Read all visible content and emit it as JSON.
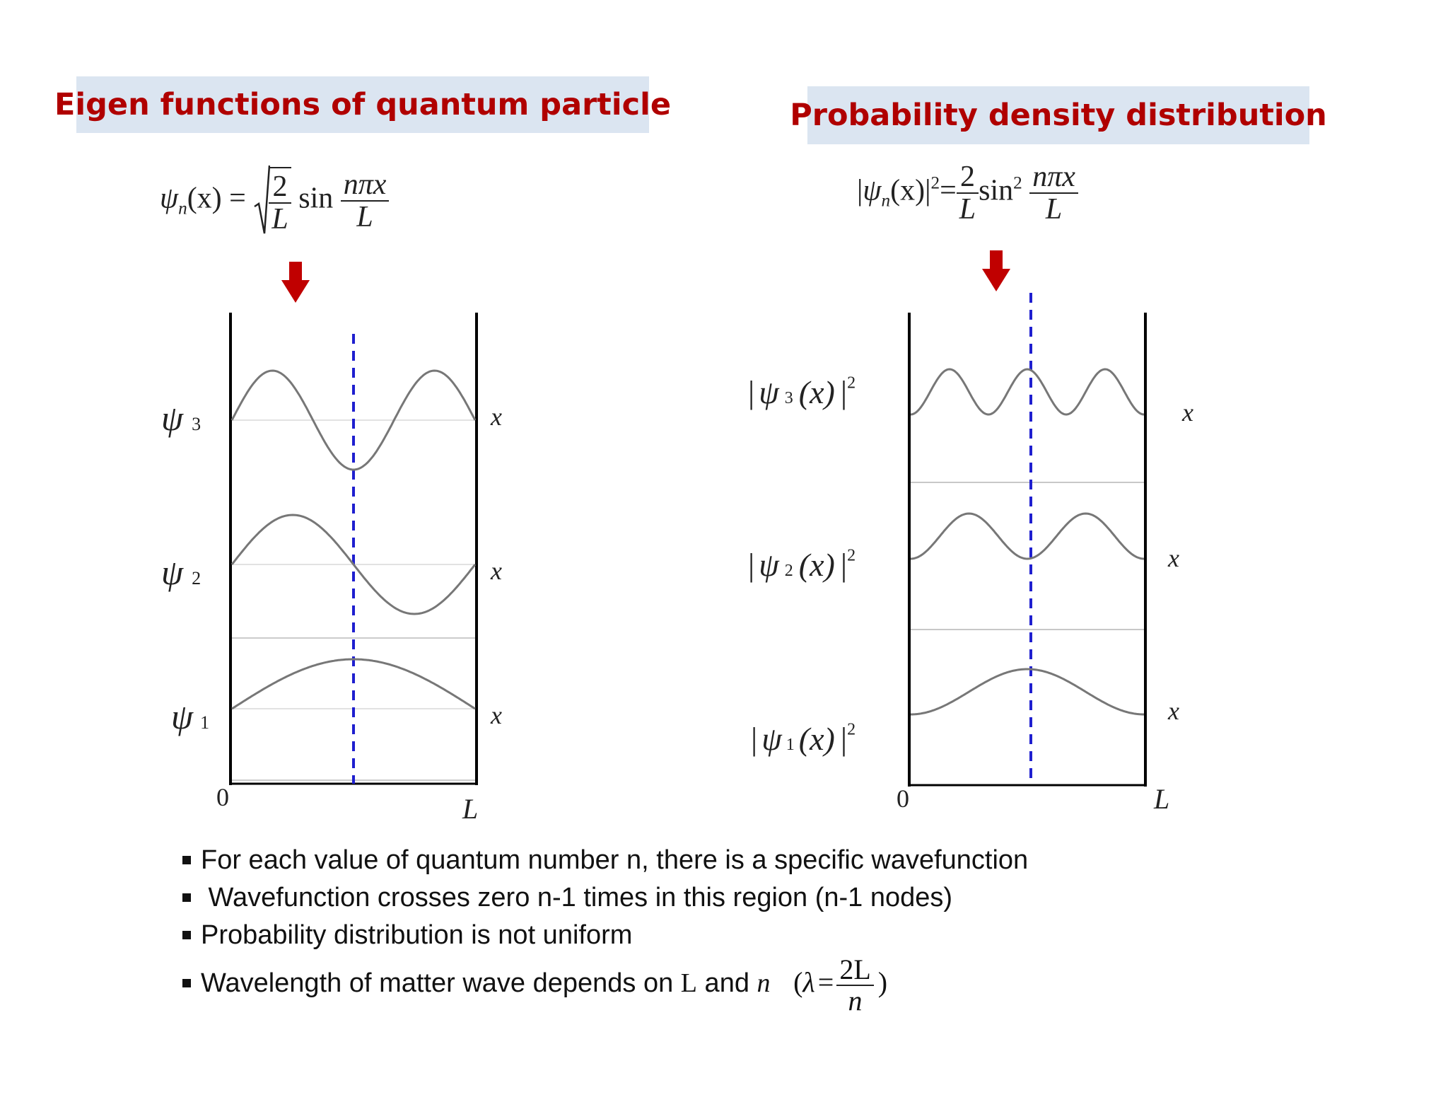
{
  "titles": {
    "left": "Eigen functions of quantum particle",
    "right": "Probability density distribution"
  },
  "formulas": {
    "left": {
      "lhs_psi": "ψ",
      "lhs_sub": "n",
      "lhs_arg": "(x)",
      "equals": "=",
      "sqrt_num": "2",
      "sqrt_den": "L",
      "func": "sin",
      "arg_num": "nπx",
      "arg_den": "L"
    },
    "right": {
      "lhs_open": "|",
      "lhs_psi": "ψ",
      "lhs_sub": "n",
      "lhs_arg": "(x)",
      "lhs_close": "|",
      "lhs_sup": "2",
      "equals": "=",
      "coef_num": "2",
      "coef_den": "L",
      "func": "sin",
      "func_sup": "2",
      "arg_num": "nπx",
      "arg_den": "L"
    }
  },
  "left_diagram": {
    "states": [
      {
        "n": 3,
        "label": "ψ",
        "sub": "3",
        "axis": "x"
      },
      {
        "n": 2,
        "label": "ψ",
        "sub": "2",
        "axis": "x"
      },
      {
        "n": 1,
        "label": "ψ",
        "sub": "1",
        "axis": "x"
      }
    ],
    "origin": "0",
    "end": "L"
  },
  "right_diagram": {
    "states": [
      {
        "n": 3,
        "open": "|",
        "psi": "ψ",
        "sub": "3",
        "arg": "(x)",
        "close": "|",
        "sup": "2",
        "axis": "x"
      },
      {
        "n": 2,
        "open": "|",
        "psi": "ψ",
        "sub": "2",
        "arg": "(x)",
        "close": "|",
        "sup": "2",
        "axis": "x"
      },
      {
        "n": 1,
        "open": "|",
        "psi": "ψ",
        "sub": "1",
        "arg": "(x)",
        "close": "|",
        "sup": "2",
        "axis": "x"
      }
    ],
    "origin": "0",
    "end": "L"
  },
  "colors": {
    "title_text": "#b00000",
    "title_bg": "#dbe5f1",
    "arrow": "#c00000",
    "dashed_line": "#1f1fcf",
    "curve": "#777777"
  },
  "bullets": [
    "For each value of quantum number n, there is a specific wavefunction",
    " Wavefunction crosses zero n-1 times in this region (n-1 nodes)",
    "Probability distribution is not uniform"
  ],
  "last_bullet": {
    "text": "Wavelength of matter wave depends on ",
    "L": "L",
    "and": " and ",
    "n": "n",
    "open": "(",
    "lambda": "λ",
    "equals": "=",
    "num": "2L",
    "den": "n",
    "close": ")"
  }
}
